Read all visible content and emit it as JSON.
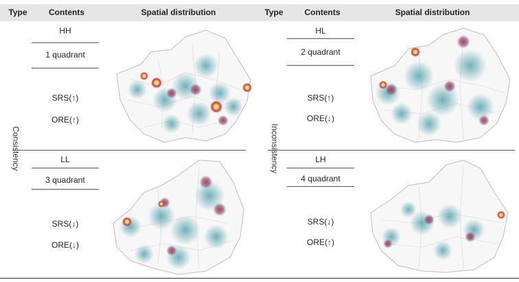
{
  "header": {
    "type_label": "Type",
    "contents_label": "Contents",
    "spatial_label": "Spatial distribution"
  },
  "groups": {
    "left_type": "Consistency",
    "right_type": "Inconsistency"
  },
  "panels": {
    "hh": {
      "code": "HH",
      "quadrant": "1 quadrant",
      "srs": "SRS(↑)",
      "ore": "ORE(↑)"
    },
    "ll": {
      "code": "LL",
      "quadrant": "3 quadrant",
      "srs": "SRS(↓)",
      "ore": "ORE(↓)"
    },
    "hl": {
      "code": "HL",
      "quadrant": "2 quadrant",
      "srs": "SRS(↑)",
      "ore": "ORE(↓)"
    },
    "lh": {
      "code": "LH",
      "quadrant": "4 quadrant",
      "srs": "SRS(↓)",
      "ore": "ORE(↑)"
    }
  },
  "colors": {
    "header_bg": "#e6e6e6",
    "map_outline": "#bdbdbd",
    "heat_low": "#5fa9b5",
    "heat_mid": "#c0314f",
    "heat_high": "#f5d04a"
  }
}
